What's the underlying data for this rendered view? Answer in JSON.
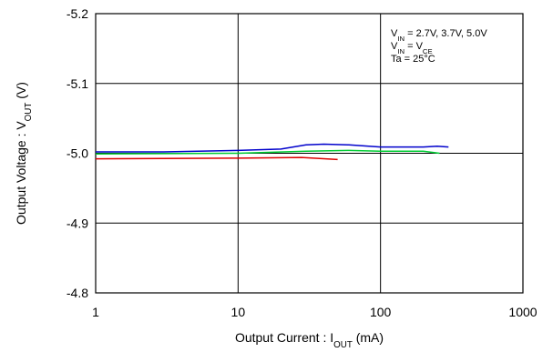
{
  "chart_data": {
    "type": "line",
    "x_label_parts": [
      "Output Current : I",
      "OUT",
      "  (mA)"
    ],
    "y_label_parts": [
      "Output Voltage : V",
      "OUT",
      " (V)"
    ],
    "annotations": [
      [
        "V",
        "IN",
        " = 2.7V,  3.7V,  5.0V"
      ],
      [
        "V",
        "IN",
        " = V",
        "CE"
      ],
      [
        "Ta = 25°C"
      ]
    ],
    "x_log": true,
    "xlim": [
      1,
      1000
    ],
    "xticks": [
      1,
      10,
      100,
      1000
    ],
    "ylim": [
      -4.8,
      -5.2
    ],
    "yticks": [
      {
        "value": -5.2,
        "label": "-5.2"
      },
      {
        "value": -5.1,
        "label": "-5.1"
      },
      {
        "value": -5,
        "label": "-5.0"
      },
      {
        "value": -4.9,
        "label": "-4.9"
      },
      -4.8
    ],
    "grid": true,
    "series": [
      {
        "color": "#0000cc",
        "x": [
          1,
          3,
          10,
          20,
          30,
          40,
          60,
          100,
          200,
          250,
          300
        ],
        "values": [
          -5.002,
          -5.002,
          -5.004,
          -5.006,
          -5.012,
          -5.013,
          -5.012,
          -5.009,
          -5.009,
          -5.01,
          -5.009
        ]
      },
      {
        "color": "#00cc33",
        "x": [
          1,
          10,
          30,
          60,
          100,
          200,
          260
        ],
        "values": [
          -4.999,
          -5.0,
          -5.003,
          -5.004,
          -5.003,
          -5.003,
          -5.0
        ]
      },
      {
        "color": "#dd0000",
        "x": [
          1,
          10,
          28,
          50
        ],
        "values": [
          -4.992,
          -4.993,
          -4.994,
          -4.991
        ]
      }
    ]
  }
}
